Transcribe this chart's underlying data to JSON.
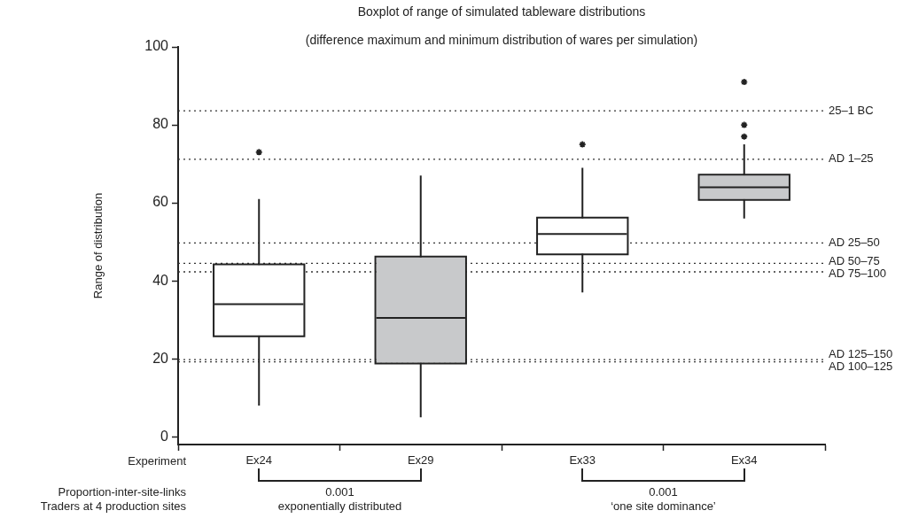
{
  "chart_data": {
    "type": "box",
    "title": "Boxplot of range of simulated tableware distributions",
    "subtitle": "(difference maximum and minimum distribution of wares per simulation)",
    "xlabel": "Experiment",
    "ylabel": "Range of distribution",
    "categories": [
      "Ex24",
      "Ex29",
      "Ex33",
      "Ex34"
    ],
    "colors": [
      "#ffffff",
      "#c8c9cb",
      "#ffffff",
      "#c8c9cb"
    ],
    "boxes": [
      {
        "low": 8,
        "q1": 26,
        "median": 34,
        "q3": 44,
        "high": 61,
        "outliers": [
          73
        ]
      },
      {
        "low": 5,
        "q1": 19,
        "median": 30.5,
        "q3": 46,
        "high": 67
      },
      {
        "low": 37,
        "q1": 47,
        "median": 52,
        "q3": 56,
        "high": 69,
        "outliers": [
          75
        ]
      },
      {
        "low": 56,
        "q1": 61,
        "median": 64,
        "q3": 67,
        "high": 75,
        "outliers": [
          91,
          80,
          77
        ]
      }
    ],
    "ylim": [
      -2,
      100
    ],
    "yticks": [
      0,
      20,
      40,
      60,
      80,
      100
    ],
    "ref_lines": [
      {
        "axis": "y",
        "value": 83.6,
        "label": "25–1 BC",
        "line_style": "dotted"
      },
      {
        "axis": "y",
        "value": 71.2,
        "label": "AD 1–25",
        "line_style": "dotted"
      },
      {
        "axis": "y",
        "value": 49.7,
        "label": "AD 25–50",
        "line_style": "dotted"
      },
      {
        "axis": "y",
        "value": 44.5,
        "label": "AD 50–75",
        "line_style": "dotted"
      },
      {
        "axis": "y",
        "value": 42.3,
        "label": "AD 75–100",
        "line_style": "dotted"
      },
      {
        "axis": "y",
        "value": 19.8,
        "label": "AD 125–150",
        "line_style": "dotted"
      },
      {
        "axis": "y",
        "value": 19.2,
        "label": "AD 100–125",
        "line_style": "dotted"
      }
    ],
    "annotations": [
      "Proportion-inter-site-links",
      "Traders at 4 production sites",
      "0.001",
      "exponentially distributed",
      "0.001",
      "‘one site dominance’"
    ]
  }
}
